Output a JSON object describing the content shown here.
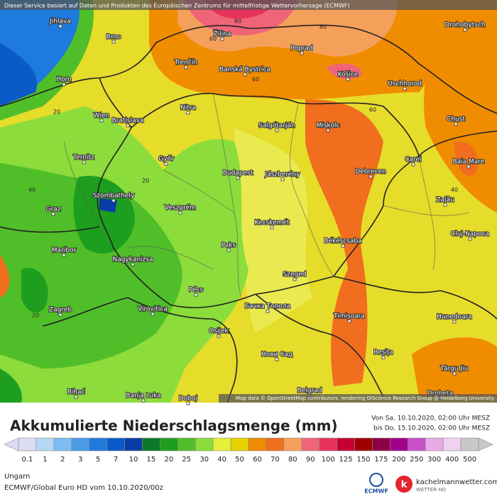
{
  "header": {
    "credit": "Dieser Service basiert auf Daten und Produkten des Europäischen Zentrums für mittelfristige Wettervorhersage (ECMWF)"
  },
  "map": {
    "cities": [
      "Jihlava",
      "Brno",
      "Žilina",
      "Poprad",
      "Trenčín",
      "Banská Bystrica",
      "Košice",
      "Uschhorod",
      "Drohobytsch",
      "Horn",
      "Wien",
      "Bratislava",
      "Nitra",
      "Salgótarján",
      "Miskolc",
      "Chust",
      "Ternitz",
      "Győr",
      "Budapest",
      "Jászberény",
      "Debrecen",
      "Carei",
      "Baia Mare",
      "Graz",
      "Szombathely",
      "Veszprém",
      "Zalău",
      "Kecskemét",
      "Cluj-Napoca",
      "Maribor",
      "Nagykanizsa",
      "Paks",
      "Békéscsaba",
      "Szeged",
      "Pécs",
      "Zagreb",
      "Virovitica",
      "Osijek",
      "Бачка Топола",
      "Timișoara",
      "Hunedoara",
      "Reșița",
      "Нови Сад",
      "Târgu Jiu",
      "Bihać",
      "Banja Luka",
      "Doboj",
      "Belgrad",
      "Drobeta"
    ],
    "contour_labels": [
      80,
      80,
      60,
      60,
      60,
      20,
      20,
      40,
      40,
      20
    ],
    "attribution": "Map data © OpenStreetMap contributors, rendering GIScience Research Group @ Heidelberg University"
  },
  "footer": {
    "title": "Akkumulierte Niederschlagsmenge (mm)",
    "period_from": "Von Sa. 10.10.2020, 02:00 Uhr MESZ",
    "period_to": "bis Do. 15.10.2020, 02:00 Uhr MESZ",
    "region": "Ungarn",
    "model": "ECMWF/Global Euro HD vom  10.10.2020/00z",
    "logo_ecmwf": "ECMWF",
    "brand": "kachelmannwetter.com",
    "brand_sub": "WETTER HD"
  },
  "legend": {
    "levels": [
      0.1,
      1,
      2,
      3,
      5,
      7,
      10,
      15,
      20,
      25,
      30,
      40,
      50,
      60,
      70,
      80,
      90,
      100,
      125,
      150,
      175,
      200,
      250,
      300,
      400,
      500
    ],
    "colors": [
      "#dcdcf2",
      "#b4d7f5",
      "#7dbcf0",
      "#4b9be6",
      "#1e7adc",
      "#0a5ac8",
      "#0a3ca5",
      "#0a7a2a",
      "#1e9e1e",
      "#50be28",
      "#8cdc3c",
      "#e6f03c",
      "#e6d200",
      "#f08c00",
      "#f06e1e",
      "#f5a05a",
      "#f06478",
      "#e6325a",
      "#c80032",
      "#a00000",
      "#8c0046",
      "#a0008c",
      "#c850c8",
      "#e6aae6",
      "#f0d2f0",
      "#c8c8c8"
    ]
  }
}
